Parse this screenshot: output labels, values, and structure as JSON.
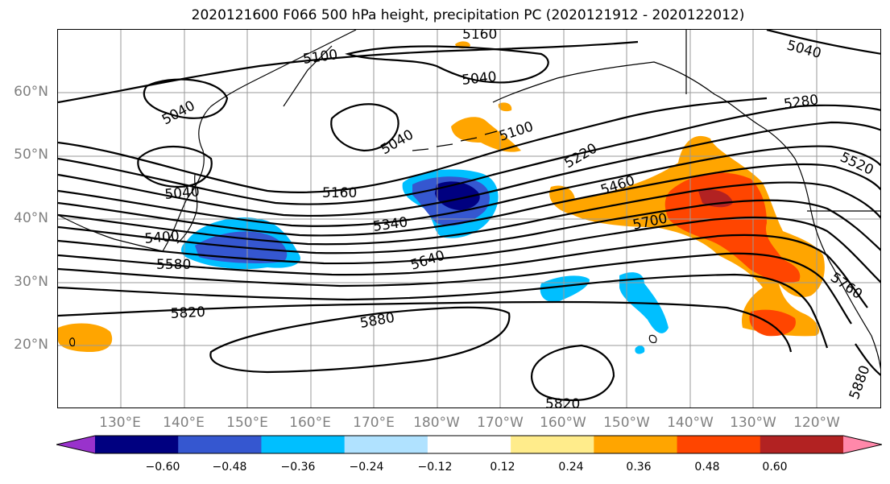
{
  "title": "2020121600 F066 500 hPa height, precipitation PC (2020121912 - 2020122012)",
  "lat_labels": [
    "60°N",
    "50°N",
    "40°N",
    "30°N",
    "20°N"
  ],
  "lon_labels": [
    "130°E",
    "140°E",
    "150°E",
    "160°E",
    "170°E",
    "180°W",
    "170°W",
    "160°W",
    "150°W",
    "140°W",
    "130°W",
    "120°W"
  ],
  "contour_labels": [
    "5160",
    "5040",
    "5100",
    "5040",
    "5040",
    "5100",
    "5040",
    "5040",
    "5280",
    "5220",
    "5160",
    "5460",
    "5520",
    "5400",
    "5340",
    "5700",
    "5580",
    "5640",
    "5760",
    "5820",
    "5880",
    "5820",
    "5880"
  ],
  "colorbar": {
    "colors": [
      "#9932CC",
      "#000080",
      "#3557D0",
      "#00BFFF",
      "#B0E2FF",
      "#FFFFFF",
      "#FFEC8B",
      "#FFA500",
      "#FF4500",
      "#B22222",
      "#FF88AA"
    ],
    "tick_labels": [
      "−0.60",
      "−0.48",
      "−0.36",
      "−0.24",
      "−0.12",
      "0.12",
      "0.24",
      "0.36",
      "0.48",
      "0.60"
    ]
  }
}
